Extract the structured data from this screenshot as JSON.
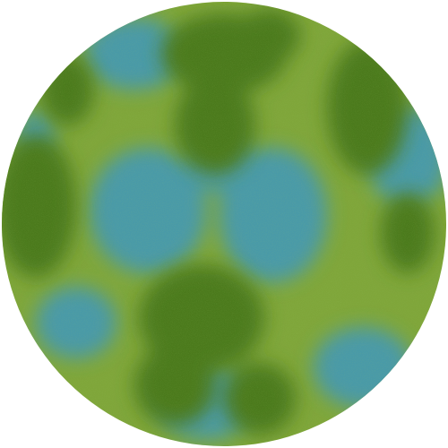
{
  "image": {
    "subject": "planet-disc",
    "colors": {
      "background": "#ffffff",
      "base_green": "#7fa63a",
      "dark_green": "#4b7a1d",
      "teal_blue": "#4a9aa8"
    }
  }
}
